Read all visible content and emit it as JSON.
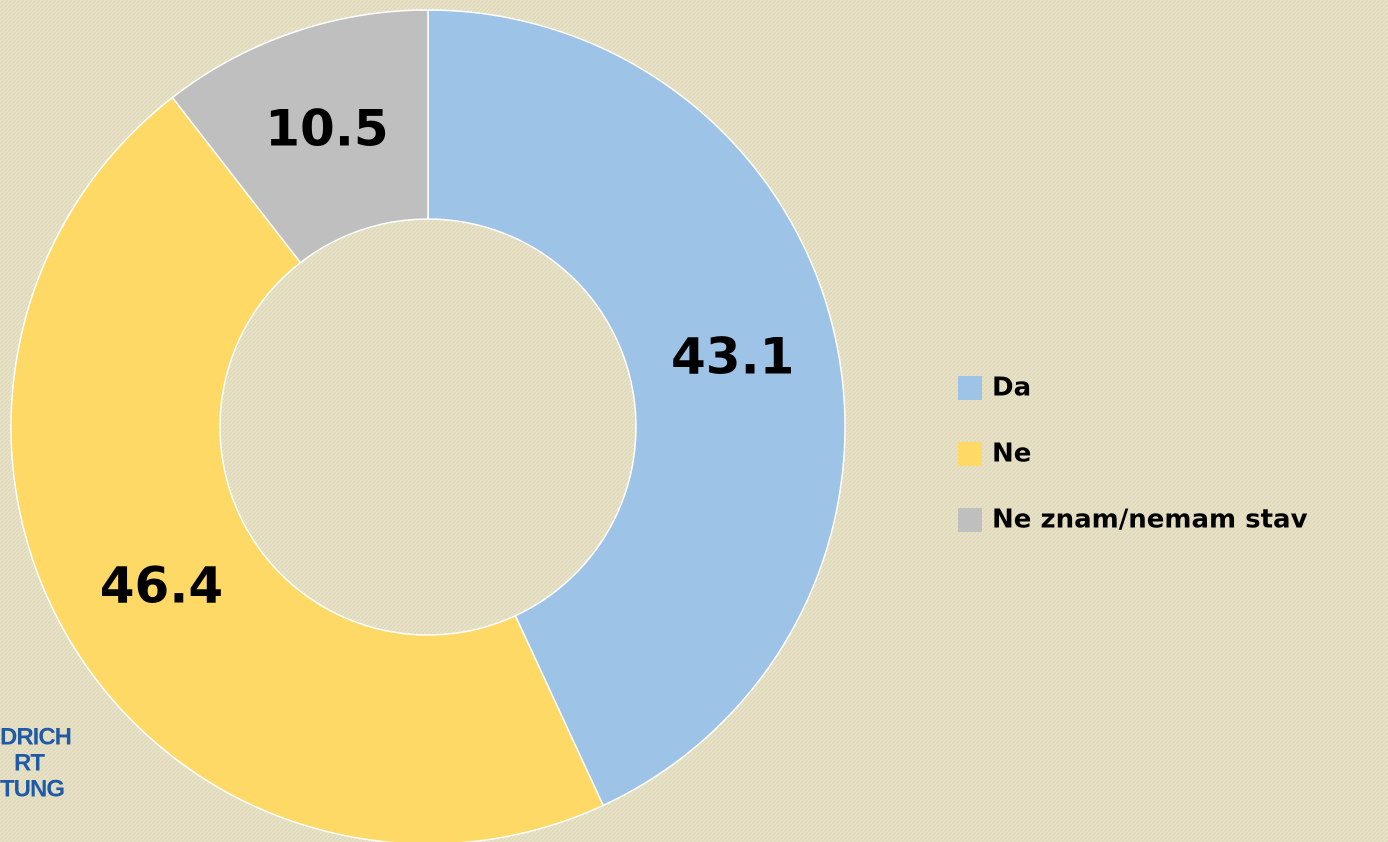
{
  "chart_data": {
    "type": "donut",
    "categories": [
      "Da",
      "Ne",
      "Ne znam/nemam stav"
    ],
    "values": [
      43.1,
      46.4,
      10.5
    ],
    "colors": [
      "#9dc3e6",
      "#ffd966",
      "#bfbfbf"
    ],
    "legend": "right"
  },
  "logo": {
    "lines": [
      "DRICH",
      "RT",
      "TUNG"
    ]
  }
}
